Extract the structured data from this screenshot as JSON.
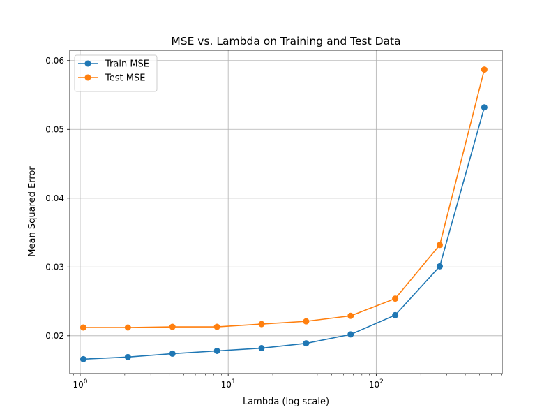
{
  "chart_data": {
    "type": "line",
    "title": "MSE vs. Lambda on Training and Test Data",
    "xlabel": "Lambda (log scale)",
    "ylabel": "Mean Squared Error",
    "xscale": "log",
    "grid": true,
    "legend_position": "upper-left",
    "x": [
      1.05,
      2.1,
      4.2,
      8.4,
      16.8,
      33.6,
      67.2,
      134.4,
      268.8,
      537.6
    ],
    "series": [
      {
        "name": "Train MSE",
        "color": "#1f77b4",
        "values": [
          0.0166,
          0.0169,
          0.0174,
          0.0178,
          0.0182,
          0.0189,
          0.0202,
          0.023,
          0.0301,
          0.0532
        ]
      },
      {
        "name": "Test MSE",
        "color": "#ff7f0e",
        "values": [
          0.0212,
          0.0212,
          0.0213,
          0.0213,
          0.0217,
          0.0221,
          0.0229,
          0.0254,
          0.0332,
          0.0587
        ]
      }
    ],
    "xlim": [
      0.85,
      710
    ],
    "ylim": [
      0.0145,
      0.0615
    ],
    "x_ticks": [
      {
        "value": 1,
        "base": "10",
        "exp": "0"
      },
      {
        "value": 10,
        "base": "10",
        "exp": "1"
      },
      {
        "value": 100,
        "base": "10",
        "exp": "2"
      }
    ],
    "y_ticks": [
      {
        "value": 0.02,
        "label": "0.02"
      },
      {
        "value": 0.03,
        "label": "0.03"
      },
      {
        "value": 0.04,
        "label": "0.04"
      },
      {
        "value": 0.05,
        "label": "0.05"
      },
      {
        "value": 0.06,
        "label": "0.06"
      }
    ]
  }
}
